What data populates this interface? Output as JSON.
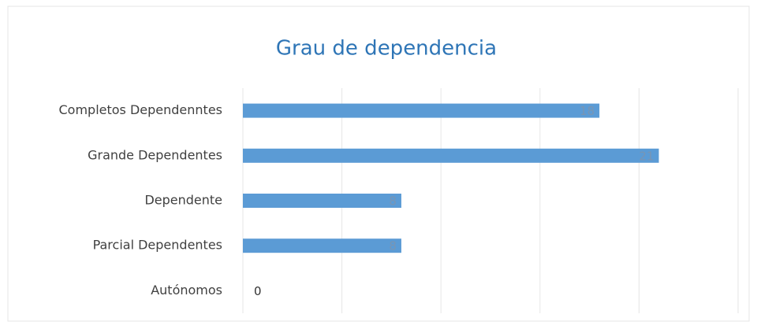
{
  "chart_data": {
    "type": "hbar",
    "title": "Grau de dependencia",
    "categories": [
      "Completos Dependenntes",
      "Grande Dependentes",
      "Dependente",
      "Parcial Dependentes",
      "Autónomos"
    ],
    "values": [
      18,
      21,
      8,
      8,
      0
    ],
    "color": "#5b9bd5",
    "xlim": [
      0,
      25
    ],
    "xticks": [
      0,
      5,
      10,
      15,
      20,
      25
    ],
    "grid": true
  }
}
